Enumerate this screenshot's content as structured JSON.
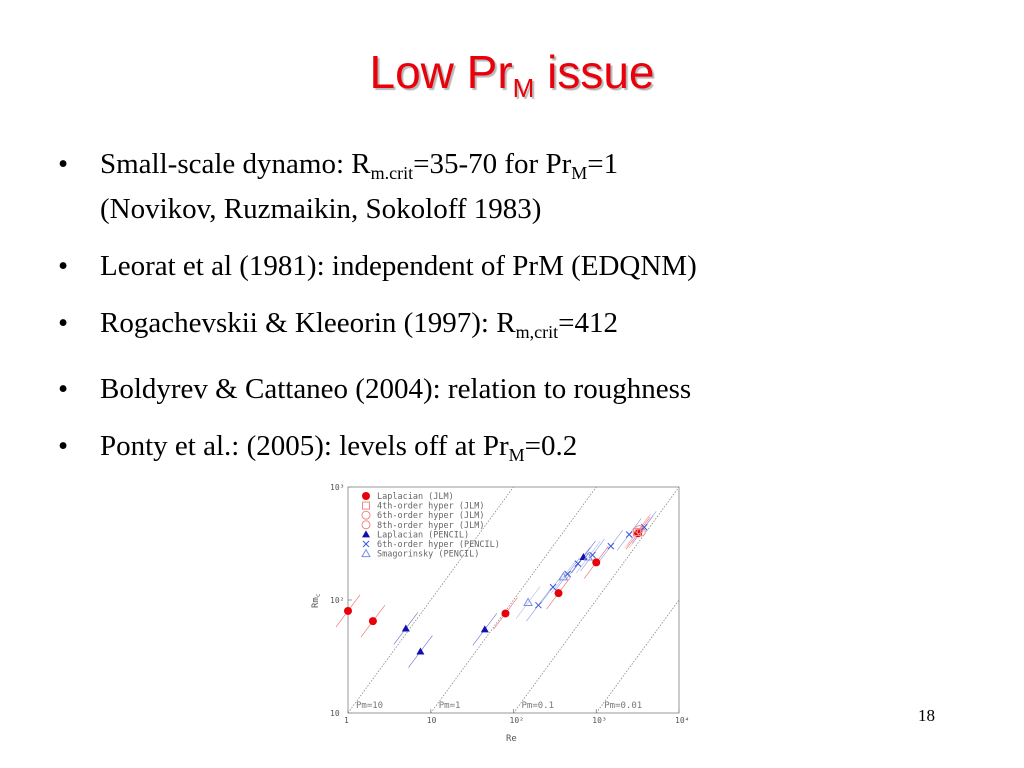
{
  "slide": {
    "title": {
      "pre": "Low Pr",
      "sub": "M",
      "post": " issue"
    },
    "bullets": [
      {
        "pre": "Small-scale dynamo: R",
        "sub1": "m.crit",
        "mid": "=35-70 for Pr",
        "sub2": "M",
        "post": "=1",
        "line2": "(Novikov, Ruzmaikin, Sokoloff 1983)"
      },
      {
        "text": "Leorat et al (1981): independent of PrM (EDQNM)"
      },
      {
        "pre": "Rogachevskii & Kleeorin (1997): R",
        "sub1": "m,crit",
        "post": "=412"
      },
      {
        "text": "Boldyrev & Cattaneo (2004): relation to roughness"
      },
      {
        "pre": "Ponty et al.:  (2005): levels off at Pr",
        "sub1": "M",
        "post": "=0.2"
      }
    ],
    "bullet_symbol": "•",
    "page_number": "18"
  },
  "chart_data": {
    "type": "scatter",
    "xlabel": "Re",
    "ylabel": "Rm",
    "ylabel_sub": "c",
    "x_scale": "log",
    "y_scale": "log",
    "xlim": [
      1,
      10000
    ],
    "ylim": [
      10,
      1000
    ],
    "x_ticks": [
      {
        "value": 1,
        "label": "1"
      },
      {
        "value": 10,
        "label": "10"
      },
      {
        "value": 100,
        "label": "10²"
      },
      {
        "value": 1000,
        "label": "10³"
      },
      {
        "value": 10000,
        "label": "10⁴"
      }
    ],
    "y_ticks": [
      {
        "value": 10,
        "label": "10"
      },
      {
        "value": 100,
        "label": "10²"
      },
      {
        "value": 1000,
        "label": "10³"
      }
    ],
    "reference_lines": [
      {
        "pm": 10,
        "label": "Pm=10"
      },
      {
        "pm": 1,
        "label": "Pm=1"
      },
      {
        "pm": 0.1,
        "label": "Pm=0.1"
      },
      {
        "pm": 0.01,
        "label": "Pm=0.01"
      }
    ],
    "legend_position": "top-left",
    "series": [
      {
        "name": "Laplacian (JLM)",
        "marker": "filled-circle",
        "color": "#e8000b",
        "points": [
          [
            1.0,
            80
          ],
          [
            2.0,
            65
          ],
          [
            80,
            76
          ],
          [
            350,
            115
          ],
          [
            1000,
            215
          ],
          [
            3200,
            390
          ]
        ]
      },
      {
        "name": "4th-order hyper (JLM)",
        "marker": "open-square",
        "color": "#f08a8a",
        "points": [
          [
            3100,
            400
          ]
        ]
      },
      {
        "name": "6th-order hyper (JLM)",
        "marker": "open-circle",
        "color": "#f08a8a",
        "points": [
          [
            3300,
            420
          ]
        ]
      },
      {
        "name": "8th-order hyper (JLM)",
        "marker": "open-circle",
        "color": "#f08a8a",
        "points": [
          [
            3500,
            400
          ]
        ]
      },
      {
        "name": "Laplacian (PENCIL)",
        "marker": "filled-triangle",
        "color": "#1010b0",
        "points": [
          [
            5,
            56
          ],
          [
            7.5,
            35
          ],
          [
            45,
            55
          ],
          [
            700,
            240
          ]
        ]
      },
      {
        "name": "6th-order hyper (PENCIL)",
        "marker": "cross",
        "color": "#3a5ad8",
        "points": [
          [
            200,
            90
          ],
          [
            300,
            130
          ],
          [
            450,
            170
          ],
          [
            600,
            210
          ],
          [
            900,
            250
          ],
          [
            1500,
            300
          ],
          [
            2500,
            380
          ],
          [
            3800,
            440
          ]
        ]
      },
      {
        "name": "Smagorinsky (PENCIL)",
        "marker": "open-triangle",
        "color": "#7b8fe0",
        "points": [
          [
            150,
            95
          ],
          [
            400,
            160
          ],
          [
            800,
            240
          ]
        ]
      }
    ]
  }
}
